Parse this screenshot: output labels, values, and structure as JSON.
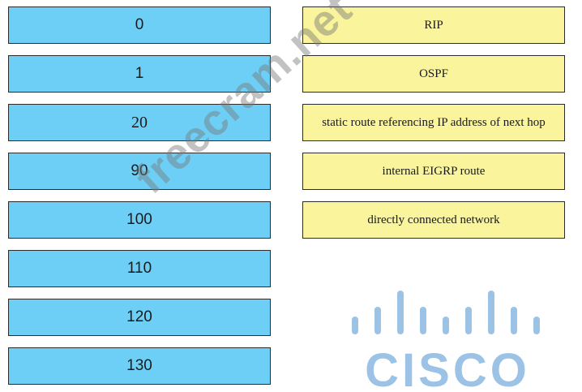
{
  "left_items": [
    {
      "label": "0"
    },
    {
      "label": "1"
    },
    {
      "label": "20"
    },
    {
      "label": "90"
    },
    {
      "label": "100"
    },
    {
      "label": "110"
    },
    {
      "label": "120"
    },
    {
      "label": "130"
    }
  ],
  "right_items": [
    {
      "label": "RIP"
    },
    {
      "label": "OSPF"
    },
    {
      "label": "static route referencing IP address of next hop"
    },
    {
      "label": "internal EIGRP route"
    },
    {
      "label": "directly connected network"
    }
  ],
  "watermark": "freecram.net",
  "logo": {
    "text": "CISCO",
    "icon": "cisco-logo",
    "color": "#9cc3e6"
  },
  "colors": {
    "left_fill": "#6ecff6",
    "right_fill": "#faf59c"
  }
}
